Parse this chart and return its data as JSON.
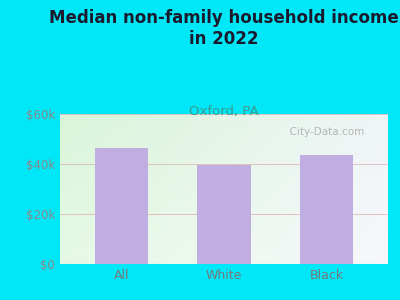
{
  "title": "Median non-family household income\nin 2022",
  "subtitle": "Oxford, PA",
  "categories": [
    "All",
    "White",
    "Black"
  ],
  "values": [
    46500,
    39500,
    43500
  ],
  "bar_color": "#c0aee0",
  "bar_edgecolor": "none",
  "ylim": [
    0,
    60000
  ],
  "yticks": [
    0,
    20000,
    40000,
    60000
  ],
  "ytick_labels": [
    "$0",
    "$20k",
    "$40k",
    "$60k"
  ],
  "title_fontsize": 12,
  "title_color": "#1a1a2e",
  "subtitle_color": "#3a9a8a",
  "subtitle_fontsize": 9.5,
  "tick_color": "#888888",
  "bg_outer": "#00e8f8",
  "plot_bg_topleft": [
    0.85,
    0.96,
    0.85
  ],
  "plot_bg_topright": [
    0.94,
    0.96,
    0.97
  ],
  "plot_bg_bottomleft": [
    0.9,
    0.98,
    0.9
  ],
  "plot_bg_bottomright": [
    0.97,
    0.97,
    0.99
  ],
  "watermark": "  City-Data.com",
  "grid_color": "#ddaaaa",
  "grid_alpha": 0.7,
  "xtick_color": "#777777"
}
